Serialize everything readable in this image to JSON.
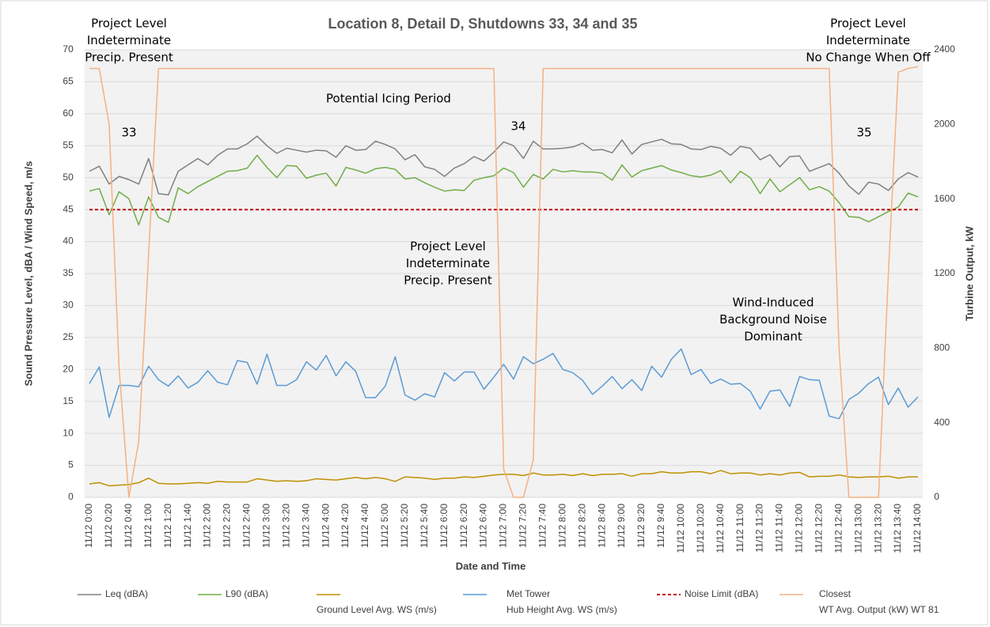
{
  "chart_data": {
    "type": "line",
    "title": "Location 8, Detail D, Shutdowns 33, 34 and 35",
    "x_label": "Date and Time",
    "y_label": "Sound Pressure Level, dBA / Wind Speed, m/s",
    "y2_label": "Turbine Output, kW",
    "categories": [
      "11/12 0:00",
      null,
      "11/12 0:20",
      null,
      "11/12 0:40",
      null,
      "11/12 1:00",
      null,
      "11/12 1:20",
      null,
      "11/12 1:40",
      null,
      "11/12 2:00",
      null,
      "11/12 2:20",
      null,
      "11/12 2:40",
      null,
      "11/12 3:00",
      null,
      "11/12 3:20",
      null,
      "11/12 3:40",
      null,
      "11/12 4:00",
      null,
      "11/12 4:20",
      null,
      "11/12 4:40",
      null,
      "11/12 5:00",
      null,
      "11/12 5:20",
      null,
      "11/12 5:40",
      null,
      "11/12 6:00",
      null,
      "11/12 6:20",
      null,
      "11/12 6:40",
      null,
      "11/12 7:00",
      null,
      "11/12 7:20",
      null,
      "11/12 7:40",
      null,
      "11/12 8:00",
      null,
      "11/12 8:20",
      null,
      "11/12 8:40",
      null,
      "11/12 9:00",
      null,
      "11/12 9:20",
      null,
      "11/12 9:40",
      null,
      "11/12 10:00",
      null,
      "11/12 10:20",
      null,
      "11/12 10:40",
      null,
      "11/12 11:00",
      null,
      "11/12 11:20",
      null,
      "11/12 11:40",
      null,
      "11/12 12:00",
      null,
      "11/12 12:20",
      null,
      "11/12 12:40",
      null,
      "11/12 13:00",
      null,
      "11/12 13:20",
      null,
      "11/12 13:40",
      null,
      "11/12 14:00"
    ],
    "ylim": [
      0,
      70
    ],
    "yticks": [
      0,
      5,
      10,
      15,
      20,
      25,
      30,
      35,
      40,
      45,
      50,
      55,
      60,
      65,
      70
    ],
    "y2lim": [
      0,
      2400
    ],
    "y2ticks": [
      0,
      400,
      800,
      1200,
      1600,
      2000,
      2400
    ],
    "grid": true,
    "series": [
      {
        "name": [
          "Leq (dBA)"
        ],
        "color": "#808080",
        "values": [
          51,
          51.8,
          49,
          50.2,
          49.7,
          49,
          53,
          47.5,
          47.3,
          51,
          52,
          53,
          52,
          53.5,
          54.5,
          54.5,
          55.3,
          56.5,
          55,
          53.8,
          54.6,
          54.3,
          54,
          54.3,
          54.2,
          53.2,
          55,
          54.3,
          54.4,
          55.7,
          55.2,
          54.5,
          52.8,
          53.6,
          51.7,
          51.3,
          50.2,
          51.5,
          52.2,
          53.3,
          52.6,
          54,
          55.6,
          55,
          53,
          55.7,
          54.5,
          54.5,
          54.6,
          54.8,
          55.4,
          54.3,
          54.4,
          53.9,
          55.9,
          53.7,
          55.2,
          55.6,
          56,
          55.3,
          55.2,
          54.5,
          54.4,
          54.9,
          54.6,
          53.5,
          54.9,
          54.6,
          52.8,
          53.6,
          51.7,
          53.3,
          53.4,
          51,
          51.6,
          52.2,
          50.7,
          48.7,
          47.4,
          49.3,
          49,
          48,
          49.8,
          50.8,
          50.1
        ]
      },
      {
        "name": [
          "L90 (dBA)"
        ],
        "color": "#70ad47",
        "values": [
          47.9,
          48.3,
          44.2,
          47.8,
          46.7,
          42.6,
          47,
          43.8,
          43,
          48.4,
          47.5,
          48.6,
          49.4,
          50.2,
          51,
          51.1,
          51.5,
          53.5,
          51.6,
          50,
          51.9,
          51.8,
          49.9,
          50.4,
          50.7,
          48.7,
          51.6,
          51.2,
          50.7,
          51.4,
          51.6,
          51.3,
          49.8,
          50,
          49.2,
          48.5,
          47.9,
          48.1,
          48,
          49.6,
          50,
          50.3,
          51.5,
          50.8,
          48.5,
          50.5,
          49.8,
          51.3,
          50.9,
          51.1,
          50.9,
          50.9,
          50.7,
          49.6,
          52,
          50.1,
          51.1,
          51.5,
          51.9,
          51.2,
          50.8,
          50.3,
          50.1,
          50.4,
          51.1,
          49.2,
          51,
          50,
          47.5,
          49.8,
          47.8,
          48.9,
          50,
          48.1,
          48.6,
          47.9,
          46.1,
          43.9,
          43.8,
          43.1,
          43.9,
          44.7,
          45.4,
          47.6,
          47
        ]
      },
      {
        "name": [
          "Ground Level Avg. WS (m/s)"
        ],
        "color": "#bf9000",
        "values": [
          2.1,
          2.3,
          1.8,
          1.9,
          2,
          2.3,
          3,
          2.2,
          2.1,
          2.1,
          2.2,
          2.3,
          2.2,
          2.5,
          2.4,
          2.4,
          2.4,
          2.9,
          2.7,
          2.5,
          2.6,
          2.5,
          2.6,
          2.9,
          2.8,
          2.7,
          2.9,
          3.1,
          2.9,
          3.1,
          2.9,
          2.5,
          3.2,
          3.1,
          3,
          2.8,
          3,
          3,
          3.2,
          3.1,
          3.3,
          3.5,
          3.6,
          3.6,
          3.4,
          3.8,
          3.5,
          3.5,
          3.6,
          3.4,
          3.7,
          3.4,
          3.6,
          3.6,
          3.7,
          3.3,
          3.7,
          3.7,
          4,
          3.8,
          3.8,
          4,
          4,
          3.7,
          4.2,
          3.7,
          3.8,
          3.8,
          3.5,
          3.7,
          3.5,
          3.8,
          3.9,
          3.2,
          3.3,
          3.3,
          3.5,
          3.2,
          3.1,
          3.2,
          3.2,
          3.3,
          3,
          3.2,
          3.2
        ]
      },
      {
        "name": [
          "Met Tower",
          "Hub Height Avg. WS (m/s)"
        ],
        "color": "#5b9bd5",
        "values": [
          17.8,
          20.4,
          12.5,
          17.5,
          17.5,
          17.3,
          20.5,
          18.4,
          17.4,
          19,
          17.1,
          18,
          19.8,
          18,
          17.6,
          21.4,
          21.1,
          17.7,
          22.4,
          17.5,
          17.5,
          18.4,
          21.2,
          19.9,
          22.2,
          19,
          21.2,
          19.7,
          15.6,
          15.6,
          17.4,
          22,
          16,
          15.2,
          16.2,
          15.7,
          19.5,
          18.2,
          19.6,
          19.6,
          16.9,
          18.8,
          20.8,
          18.5,
          22,
          20.9,
          21.6,
          22.5,
          20,
          19.5,
          18.3,
          16.1,
          17.4,
          18.9,
          17,
          18.4,
          16.7,
          20.5,
          18.8,
          21.6,
          23.2,
          19.2,
          20,
          17.8,
          18.5,
          17.7,
          17.8,
          16.6,
          13.8,
          16.6,
          16.8,
          14.2,
          18.9,
          18.4,
          18.3,
          12.7,
          12.3,
          15.3,
          16.3,
          17.8,
          18.8,
          14.5,
          17.1,
          14.1,
          15.7
        ]
      },
      {
        "name": [
          "Noise Limit (dBA)"
        ],
        "color": "#c00000",
        "line_style": "dashed",
        "values": [
          45,
          45,
          45,
          45,
          45,
          45,
          45,
          45,
          45,
          45,
          45,
          45,
          45,
          45,
          45,
          45,
          45,
          45,
          45,
          45,
          45,
          45,
          45,
          45,
          45,
          45,
          45,
          45,
          45,
          45,
          45,
          45,
          45,
          45,
          45,
          45,
          45,
          45,
          45,
          45,
          45,
          45,
          45,
          45,
          45,
          45,
          45,
          45,
          45,
          45,
          45,
          45,
          45,
          45,
          45,
          45,
          45,
          45,
          45,
          45,
          45,
          45,
          45,
          45,
          45,
          45,
          45,
          45,
          45,
          45,
          45,
          45,
          45,
          45,
          45,
          45,
          45,
          45,
          45,
          45,
          45,
          45,
          45,
          45,
          45
        ]
      },
      {
        "name": [
          "Closest",
          "WT Avg. Output (kW) WT 81"
        ],
        "color": "#f4b183",
        "axis": "y2",
        "values": [
          2300,
          2300,
          2000,
          700,
          0,
          300,
          1300,
          2300,
          2300,
          2300,
          2300,
          2300,
          2300,
          2300,
          2300,
          2300,
          2300,
          2300,
          2300,
          2300,
          2300,
          2300,
          2300,
          2300,
          2300,
          2300,
          2300,
          2300,
          2300,
          2300,
          2300,
          2300,
          2300,
          2300,
          2300,
          2300,
          2300,
          2300,
          2300,
          2300,
          2300,
          2300,
          150,
          0,
          0,
          200,
          2300,
          2300,
          2300,
          2300,
          2300,
          2300,
          2300,
          2300,
          2300,
          2300,
          2300,
          2300,
          2300,
          2300,
          2300,
          2300,
          2300,
          2300,
          2300,
          2300,
          2300,
          2300,
          2300,
          2300,
          2300,
          2300,
          2300,
          2300,
          2300,
          2300,
          800,
          0,
          0,
          0,
          0,
          1200,
          2280,
          2300,
          2310
        ]
      }
    ],
    "annotations": [
      {
        "lines": [
          "Project Level",
          "Indeterminate",
          "Precip. Present"
        ]
      },
      {
        "lines": [
          "Potential Icing Period"
        ]
      },
      {
        "lines": [
          "33"
        ]
      },
      {
        "lines": [
          "34"
        ]
      },
      {
        "lines": [
          "35"
        ]
      },
      {
        "lines": [
          "Project Level",
          "Indeterminate",
          "Precip. Present"
        ]
      },
      {
        "lines": [
          "Wind-Induced",
          "Background Noise",
          "Dominant"
        ]
      },
      {
        "lines": [
          "Project Level",
          "Indeterminate",
          "No Change When Off"
        ]
      }
    ]
  }
}
